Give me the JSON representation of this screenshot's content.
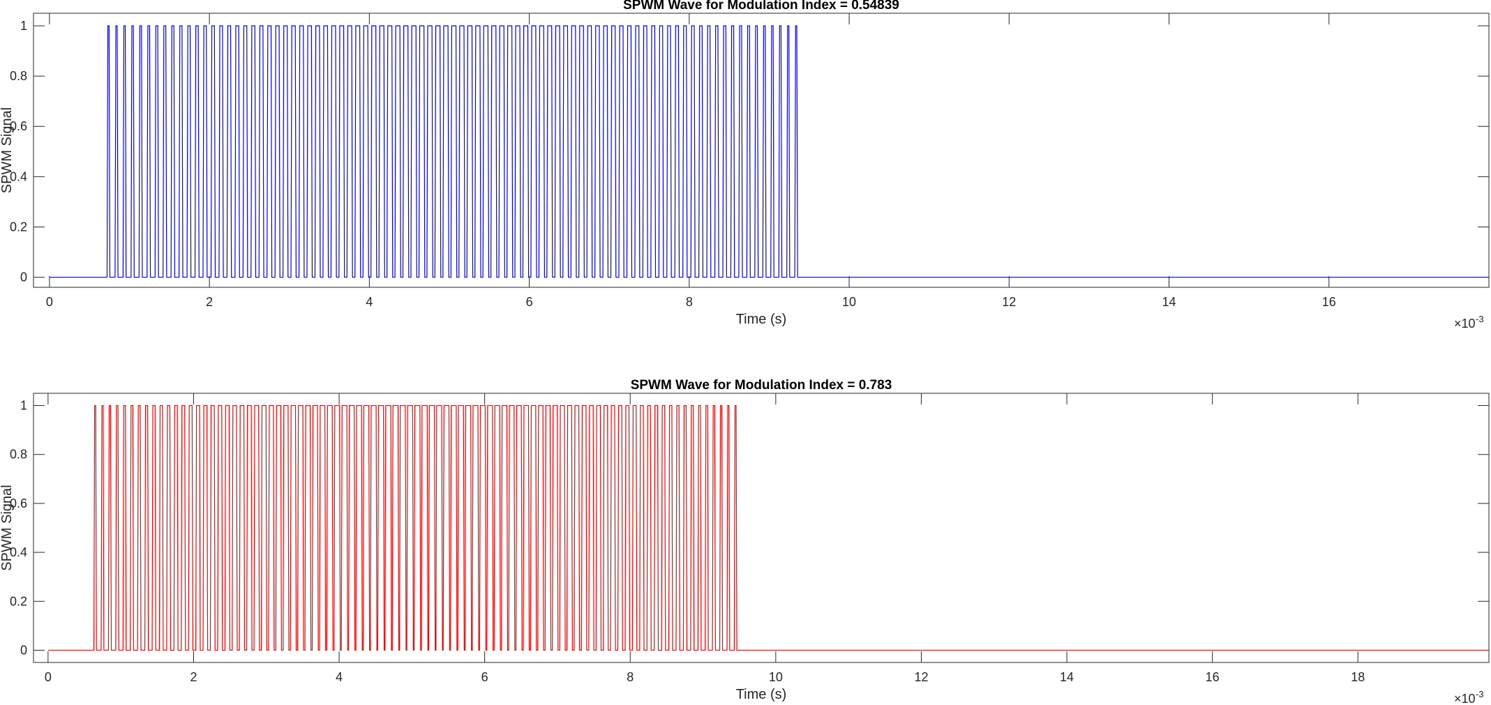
{
  "figure": {
    "background": "#ffffff",
    "axis_color": "#262626"
  },
  "chart_data": [
    {
      "type": "line",
      "title": "SPWM Wave for Modulation Index = 0.54839",
      "xlabel": "Time (s)",
      "ylabel": "SPWM Signal",
      "x_multiplier_base": "×10",
      "x_multiplier_exp": "-3",
      "xlim": [
        -0.0002,
        0.018
      ],
      "ylim": [
        -0.04,
        1.05
      ],
      "xticks": [
        0,
        0.002,
        0.004,
        0.006,
        0.008,
        0.01,
        0.012,
        0.014,
        0.016
      ],
      "xtick_labels": [
        "0",
        "2",
        "4",
        "6",
        "8",
        "10",
        "12",
        "14",
        "16"
      ],
      "yticks": [
        0,
        0.2,
        0.4,
        0.6,
        0.8,
        1
      ],
      "ytick_labels": [
        "0",
        "0.2",
        "0.4",
        "0.6",
        "0.8",
        "1"
      ],
      "grid": false,
      "series": [
        {
          "color": "#0000ff",
          "low": 0,
          "high": 1,
          "pulse_start": 0.00073,
          "pulse_end": 0.00932,
          "pulse_period": 0.0001,
          "x_end": 0.018,
          "modulation_index": 0.54839
        }
      ]
    },
    {
      "type": "line",
      "title": "SPWM Wave for Modulation Index = 0.783",
      "xlabel": "Time (s)",
      "ylabel": "SPWM Signal",
      "x_multiplier_base": "×10",
      "x_multiplier_exp": "-3",
      "xlim": [
        -0.0002,
        0.0198
      ],
      "ylim": [
        -0.05,
        1.05
      ],
      "xticks": [
        0,
        0.002,
        0.004,
        0.006,
        0.008,
        0.01,
        0.012,
        0.014,
        0.016,
        0.018
      ],
      "xtick_labels": [
        "0",
        "2",
        "4",
        "6",
        "8",
        "10",
        "12",
        "14",
        "16",
        "18"
      ],
      "yticks": [
        0,
        0.2,
        0.4,
        0.6,
        0.8,
        1
      ],
      "ytick_labels": [
        "0",
        "0.2",
        "0.4",
        "0.6",
        "0.8",
        "1"
      ],
      "grid": false,
      "series": [
        {
          "color": "#ff0000",
          "low": 0,
          "high": 1,
          "pulse_start": 0.00064,
          "pulse_end": 0.00944,
          "pulse_period": 0.0001,
          "x_end": 0.0198,
          "modulation_index": 0.783
        }
      ]
    }
  ]
}
